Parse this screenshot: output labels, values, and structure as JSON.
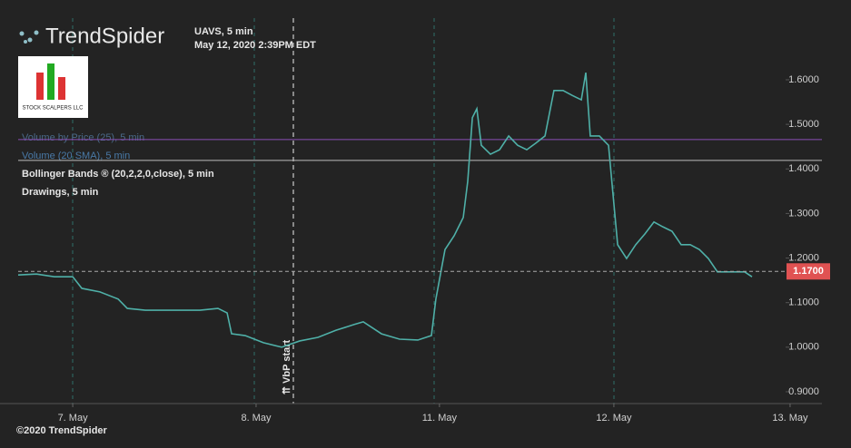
{
  "brand": "TrendSpider",
  "logo_text": "STOCK SCALPERS LLC",
  "header": {
    "symbol": "UAVS, 5 min",
    "datetime": "May 12, 2020 2:39PM EDT"
  },
  "legend": [
    "Volume by Price (25), 5 min",
    "Volume (20 SMA), 5 min",
    "Bollinger Bands ® (20,2,2,0,close), 5 min",
    "Drawings, 5 min"
  ],
  "footer": "©2020 TrendSpider",
  "chart_data": {
    "type": "line",
    "annotation": "⇈ VbP start",
    "x": [
      -0.305,
      -0.203,
      -0.102,
      0,
      0.051,
      0.152,
      0.254,
      0.305,
      0.406,
      0.508,
      0.609,
      0.711,
      0.812,
      0.863,
      0.888,
      0.964,
      1.066,
      1.168,
      1.269,
      1.371,
      1.472,
      1.574,
      1.624,
      1.726,
      1.827,
      1.929,
      2.005,
      2.03,
      2.081,
      2.132,
      2.183,
      2.208,
      2.234,
      2.259,
      2.284,
      2.335,
      2.386,
      2.437,
      2.487,
      2.538,
      2.589,
      2.64,
      2.69,
      2.741,
      2.792,
      2.843,
      2.868,
      2.893,
      2.944,
      2.995,
      3.046,
      3.096,
      3.147,
      3.198,
      3.249,
      3.299,
      3.35,
      3.401,
      3.452,
      3.503,
      3.553,
      3.604,
      3.655,
      3.706,
      3.756,
      3.797
    ],
    "series": [
      {
        "name": "UAVS",
        "color": "#4fb0a8",
        "values": [
          1.162,
          1.164,
          1.158,
          1.158,
          1.132,
          1.124,
          1.108,
          1.087,
          1.083,
          1.083,
          1.083,
          1.083,
          1.087,
          1.077,
          1.03,
          1.026,
          1.01,
          1.0,
          1.014,
          1.022,
          1.038,
          1.051,
          1.057,
          1.03,
          1.018,
          1.016,
          1.026,
          1.108,
          1.219,
          1.25,
          1.291,
          1.372,
          1.515,
          1.535,
          1.453,
          1.433,
          1.443,
          1.474,
          1.453,
          1.443,
          1.458,
          1.474,
          1.576,
          1.576,
          1.565,
          1.555,
          1.616,
          1.474,
          1.474,
          1.453,
          1.23,
          1.199,
          1.23,
          1.254,
          1.281,
          1.27,
          1.26,
          1.23,
          1.23,
          1.219,
          1.199,
          1.169,
          1.169,
          1.169,
          1.169,
          1.158
        ]
      }
    ],
    "last_price": {
      "value": 1.17,
      "label": "1.1700",
      "color": "#e05252"
    },
    "hlines": [
      {
        "value": 1.466,
        "color": "#8a4fb5"
      },
      {
        "value": 1.419,
        "color": "#bbbbbb"
      }
    ],
    "xlim": [
      -0.305,
      4.188
    ],
    "xticks": [
      {
        "value": 0,
        "label": "7. May"
      },
      {
        "value": 1.025,
        "label": "8. May"
      },
      {
        "value": 2.05,
        "label": "11. May"
      },
      {
        "value": 3.025,
        "label": "12. May"
      },
      {
        "value": 4.01,
        "label": "13. May"
      }
    ],
    "ylim": [
      0.8735,
      1.779
    ],
    "yticks": [
      {
        "value": 1.6,
        "label": "1.6000"
      },
      {
        "value": 1.5,
        "label": "1.5000"
      },
      {
        "value": 1.4,
        "label": "1.4000"
      },
      {
        "value": 1.3,
        "label": "1.3000"
      },
      {
        "value": 1.2,
        "label": "1.2000"
      },
      {
        "value": 1.1,
        "label": "1.1000"
      },
      {
        "value": 1.0,
        "label": "1.0000"
      },
      {
        "value": 0.9,
        "label": "0.9000"
      }
    ]
  }
}
